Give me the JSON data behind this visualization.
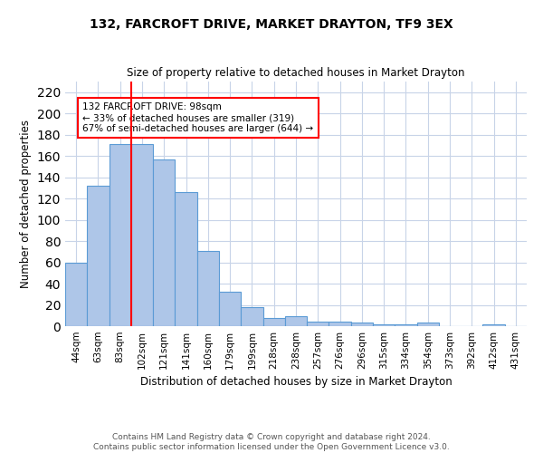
{
  "title": "132, FARCROFT DRIVE, MARKET DRAYTON, TF9 3EX",
  "subtitle": "Size of property relative to detached houses in Market Drayton",
  "xlabel": "Distribution of detached houses by size in Market Drayton",
  "ylabel": "Number of detached properties",
  "footer_line1": "Contains HM Land Registry data © Crown copyright and database right 2024.",
  "footer_line2": "Contains public sector information licensed under the Open Government Licence v3.0.",
  "categories": [
    "44sqm",
    "63sqm",
    "83sqm",
    "102sqm",
    "121sqm",
    "141sqm",
    "160sqm",
    "179sqm",
    "199sqm",
    "218sqm",
    "238sqm",
    "257sqm",
    "276sqm",
    "296sqm",
    "315sqm",
    "334sqm",
    "354sqm",
    "373sqm",
    "392sqm",
    "412sqm",
    "431sqm"
  ],
  "values": [
    60,
    132,
    171,
    171,
    157,
    126,
    71,
    32,
    18,
    8,
    9,
    4,
    4,
    3,
    2,
    2,
    3,
    0,
    0,
    2,
    0
  ],
  "bar_color": "#aec6e8",
  "bar_edge_color": "#5b9bd5",
  "background_color": "#ffffff",
  "grid_color": "#c8d4e8",
  "vline_x": 2.5,
  "vline_color": "red",
  "annotation_line1": "132 FARCROFT DRIVE: 98sqm",
  "annotation_line2": "← 33% of detached houses are smaller (319)",
  "annotation_line3": "67% of semi-detached houses are larger (644) →",
  "ylim": [
    0,
    230
  ],
  "yticks": [
    0,
    20,
    40,
    60,
    80,
    100,
    120,
    140,
    160,
    180,
    200,
    220
  ]
}
